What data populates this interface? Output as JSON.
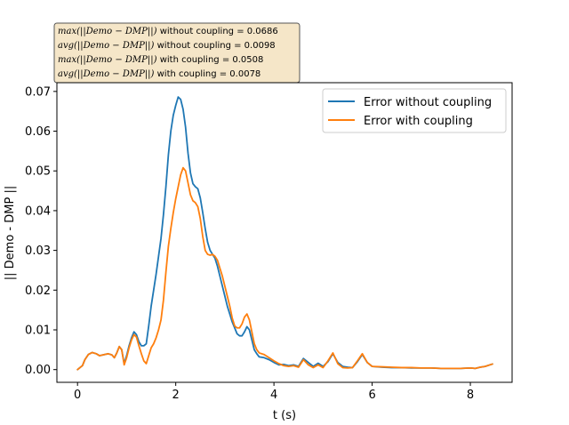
{
  "chart_data": {
    "type": "line",
    "title": "",
    "xlabel": "t (s)",
    "ylabel": "|| Demo - DMP ||",
    "xlim": [
      -0.42,
      8.85
    ],
    "ylim": [
      -0.0032,
      0.0722
    ],
    "xticks": [
      "0",
      "2",
      "4",
      "6",
      "8"
    ],
    "xtick_values": [
      0,
      2,
      4,
      6,
      8
    ],
    "yticks": [
      "0.00",
      "0.01",
      "0.02",
      "0.03",
      "0.04",
      "0.05",
      "0.06",
      "0.07"
    ],
    "ytick_values": [
      0,
      0.01,
      0.02,
      0.03,
      0.04,
      0.05,
      0.06,
      0.07
    ],
    "grid": false,
    "legend_position": "top-right",
    "annotation_box": {
      "lines": [
        {
          "math": "max(||Demo − DMP||)",
          "text": " without coupling = 0.0686"
        },
        {
          "math": "avg(||Demo − DMP||)",
          "text": " without coupling = 0.0098"
        },
        {
          "math": "max(||Demo − DMP||)",
          "text": " with coupling = 0.0508"
        },
        {
          "math": "avg(||Demo − DMP||)",
          "text": " with coupling = 0.0078"
        }
      ],
      "facecolor": "#f5e6c8"
    },
    "series": [
      {
        "name": "Error without coupling",
        "color": "#1f77b4",
        "points": [
          [
            0.0,
            0.0
          ],
          [
            0.1,
            0.001
          ],
          [
            0.15,
            0.0025
          ],
          [
            0.22,
            0.0038
          ],
          [
            0.3,
            0.0043
          ],
          [
            0.38,
            0.004
          ],
          [
            0.45,
            0.0035
          ],
          [
            0.55,
            0.0038
          ],
          [
            0.62,
            0.004
          ],
          [
            0.7,
            0.0037
          ],
          [
            0.75,
            0.003
          ],
          [
            0.8,
            0.0042
          ],
          [
            0.85,
            0.0058
          ],
          [
            0.9,
            0.005
          ],
          [
            0.95,
            0.0015
          ],
          [
            1.0,
            0.0035
          ],
          [
            1.05,
            0.006
          ],
          [
            1.1,
            0.008
          ],
          [
            1.15,
            0.0095
          ],
          [
            1.2,
            0.0088
          ],
          [
            1.25,
            0.007
          ],
          [
            1.3,
            0.006
          ],
          [
            1.35,
            0.006
          ],
          [
            1.4,
            0.0065
          ],
          [
            1.45,
            0.011
          ],
          [
            1.5,
            0.016
          ],
          [
            1.55,
            0.02
          ],
          [
            1.6,
            0.024
          ],
          [
            1.65,
            0.0285
          ],
          [
            1.7,
            0.033
          ],
          [
            1.75,
            0.039
          ],
          [
            1.8,
            0.046
          ],
          [
            1.85,
            0.054
          ],
          [
            1.9,
            0.06
          ],
          [
            1.95,
            0.064
          ],
          [
            2.0,
            0.0665
          ],
          [
            2.05,
            0.0686
          ],
          [
            2.1,
            0.068
          ],
          [
            2.15,
            0.0655
          ],
          [
            2.2,
            0.061
          ],
          [
            2.25,
            0.0545
          ],
          [
            2.3,
            0.0495
          ],
          [
            2.35,
            0.0468
          ],
          [
            2.4,
            0.046
          ],
          [
            2.45,
            0.0455
          ],
          [
            2.5,
            0.0432
          ],
          [
            2.55,
            0.0395
          ],
          [
            2.6,
            0.0355
          ],
          [
            2.65,
            0.032
          ],
          [
            2.7,
            0.03
          ],
          [
            2.75,
            0.029
          ],
          [
            2.8,
            0.028
          ],
          [
            2.85,
            0.026
          ],
          [
            2.9,
            0.0235
          ],
          [
            2.95,
            0.021
          ],
          [
            3.0,
            0.0185
          ],
          [
            3.05,
            0.016
          ],
          [
            3.1,
            0.014
          ],
          [
            3.15,
            0.012
          ],
          [
            3.2,
            0.0105
          ],
          [
            3.25,
            0.009
          ],
          [
            3.3,
            0.0085
          ],
          [
            3.35,
            0.0085
          ],
          [
            3.4,
            0.0095
          ],
          [
            3.45,
            0.0108
          ],
          [
            3.5,
            0.01
          ],
          [
            3.55,
            0.0075
          ],
          [
            3.6,
            0.005
          ],
          [
            3.65,
            0.004
          ],
          [
            3.7,
            0.0032
          ],
          [
            3.8,
            0.003
          ],
          [
            3.9,
            0.0025
          ],
          [
            4.0,
            0.0018
          ],
          [
            4.1,
            0.0012
          ],
          [
            4.2,
            0.0013
          ],
          [
            4.3,
            0.001
          ],
          [
            4.4,
            0.0012
          ],
          [
            4.5,
            0.0008
          ],
          [
            4.6,
            0.0028
          ],
          [
            4.7,
            0.0018
          ],
          [
            4.8,
            0.0008
          ],
          [
            4.9,
            0.0016
          ],
          [
            5.0,
            0.0008
          ],
          [
            5.1,
            0.002
          ],
          [
            5.2,
            0.004
          ],
          [
            5.3,
            0.0018
          ],
          [
            5.4,
            0.0008
          ],
          [
            5.5,
            0.0006
          ],
          [
            5.6,
            0.0005
          ],
          [
            5.7,
            0.002
          ],
          [
            5.8,
            0.0038
          ],
          [
            5.9,
            0.0018
          ],
          [
            6.0,
            0.0008
          ],
          [
            6.2,
            0.0006
          ],
          [
            6.4,
            0.0005
          ],
          [
            6.6,
            0.0005
          ],
          [
            6.8,
            0.0004
          ],
          [
            7.0,
            0.0004
          ],
          [
            7.2,
            0.0004
          ],
          [
            7.4,
            0.0003
          ],
          [
            7.6,
            0.0003
          ],
          [
            7.8,
            0.0003
          ],
          [
            8.0,
            0.0004
          ],
          [
            8.1,
            0.0003
          ],
          [
            8.2,
            0.0006
          ],
          [
            8.3,
            0.0008
          ],
          [
            8.4,
            0.0012
          ],
          [
            8.45,
            0.0014
          ]
        ]
      },
      {
        "name": "Error with coupling",
        "color": "#ff7f0e",
        "points": [
          [
            0.0,
            0.0
          ],
          [
            0.1,
            0.001
          ],
          [
            0.15,
            0.0025
          ],
          [
            0.22,
            0.0038
          ],
          [
            0.3,
            0.0043
          ],
          [
            0.38,
            0.004
          ],
          [
            0.45,
            0.0035
          ],
          [
            0.55,
            0.0038
          ],
          [
            0.62,
            0.004
          ],
          [
            0.7,
            0.0037
          ],
          [
            0.75,
            0.003
          ],
          [
            0.8,
            0.0042
          ],
          [
            0.85,
            0.0058
          ],
          [
            0.9,
            0.005
          ],
          [
            0.95,
            0.0012
          ],
          [
            1.0,
            0.003
          ],
          [
            1.05,
            0.0055
          ],
          [
            1.1,
            0.0075
          ],
          [
            1.15,
            0.0088
          ],
          [
            1.2,
            0.0082
          ],
          [
            1.25,
            0.006
          ],
          [
            1.3,
            0.004
          ],
          [
            1.35,
            0.0022
          ],
          [
            1.4,
            0.0015
          ],
          [
            1.45,
            0.0035
          ],
          [
            1.5,
            0.0055
          ],
          [
            1.55,
            0.0065
          ],
          [
            1.6,
            0.008
          ],
          [
            1.65,
            0.01
          ],
          [
            1.7,
            0.0125
          ],
          [
            1.75,
            0.0175
          ],
          [
            1.8,
            0.0245
          ],
          [
            1.85,
            0.031
          ],
          [
            1.9,
            0.0355
          ],
          [
            1.95,
            0.0395
          ],
          [
            2.0,
            0.043
          ],
          [
            2.05,
            0.046
          ],
          [
            2.1,
            0.049
          ],
          [
            2.15,
            0.0508
          ],
          [
            2.2,
            0.05
          ],
          [
            2.25,
            0.047
          ],
          [
            2.3,
            0.044
          ],
          [
            2.35,
            0.0425
          ],
          [
            2.4,
            0.042
          ],
          [
            2.45,
            0.041
          ],
          [
            2.5,
            0.038
          ],
          [
            2.55,
            0.0335
          ],
          [
            2.6,
            0.03
          ],
          [
            2.65,
            0.029
          ],
          [
            2.7,
            0.0288
          ],
          [
            2.75,
            0.029
          ],
          [
            2.8,
            0.0285
          ],
          [
            2.85,
            0.0275
          ],
          [
            2.9,
            0.0255
          ],
          [
            2.95,
            0.0235
          ],
          [
            3.0,
            0.021
          ],
          [
            3.05,
            0.0185
          ],
          [
            3.1,
            0.016
          ],
          [
            3.15,
            0.013
          ],
          [
            3.2,
            0.011
          ],
          [
            3.25,
            0.0105
          ],
          [
            3.3,
            0.0105
          ],
          [
            3.35,
            0.0115
          ],
          [
            3.4,
            0.0132
          ],
          [
            3.45,
            0.014
          ],
          [
            3.5,
            0.0125
          ],
          [
            3.55,
            0.0095
          ],
          [
            3.6,
            0.0065
          ],
          [
            3.65,
            0.005
          ],
          [
            3.7,
            0.0042
          ],
          [
            3.8,
            0.0038
          ],
          [
            3.9,
            0.003
          ],
          [
            4.0,
            0.0022
          ],
          [
            4.1,
            0.0015
          ],
          [
            4.2,
            0.001
          ],
          [
            4.3,
            0.0008
          ],
          [
            4.4,
            0.001
          ],
          [
            4.5,
            0.0006
          ],
          [
            4.6,
            0.0025
          ],
          [
            4.7,
            0.0012
          ],
          [
            4.8,
            0.0005
          ],
          [
            4.9,
            0.0012
          ],
          [
            5.0,
            0.0005
          ],
          [
            5.1,
            0.0022
          ],
          [
            5.2,
            0.0042
          ],
          [
            5.3,
            0.0015
          ],
          [
            5.4,
            0.0005
          ],
          [
            5.5,
            0.0004
          ],
          [
            5.6,
            0.0005
          ],
          [
            5.7,
            0.0022
          ],
          [
            5.8,
            0.004
          ],
          [
            5.9,
            0.0018
          ],
          [
            6.0,
            0.0008
          ],
          [
            6.2,
            0.0007
          ],
          [
            6.4,
            0.0006
          ],
          [
            6.6,
            0.0005
          ],
          [
            6.8,
            0.0005
          ],
          [
            7.0,
            0.0004
          ],
          [
            7.2,
            0.0004
          ],
          [
            7.4,
            0.0003
          ],
          [
            7.6,
            0.0003
          ],
          [
            7.8,
            0.0003
          ],
          [
            8.0,
            0.0004
          ],
          [
            8.1,
            0.0003
          ],
          [
            8.2,
            0.0006
          ],
          [
            8.3,
            0.0008
          ],
          [
            8.4,
            0.0012
          ],
          [
            8.45,
            0.0014
          ]
        ]
      }
    ]
  }
}
